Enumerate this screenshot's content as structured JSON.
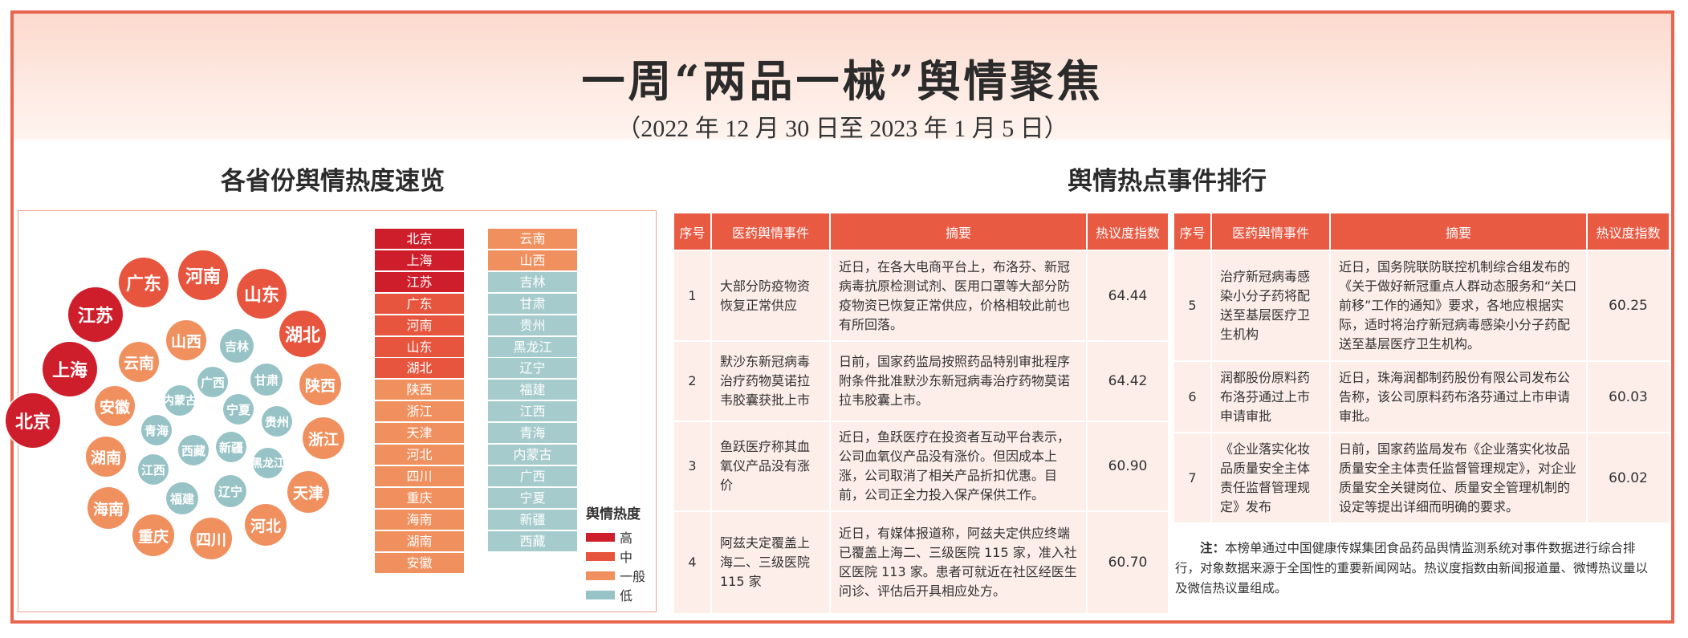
{
  "header": {
    "title": "一周“两品一械”舆情聚焦",
    "subtitle": "（2022 年 12 月 30 日至 2023 年 1 月 5 日）"
  },
  "left_section": {
    "title": "各省份舆情热度速览",
    "bubbles": [
      {
        "name": "北京",
        "level": "high"
      },
      {
        "name": "上海",
        "level": "high"
      },
      {
        "name": "江苏",
        "level": "high"
      },
      {
        "name": "广东",
        "level": "mid"
      },
      {
        "name": "河南",
        "level": "mid"
      },
      {
        "name": "山东",
        "level": "mid"
      },
      {
        "name": "湖北",
        "level": "mid"
      },
      {
        "name": "陕西",
        "level": "norm"
      },
      {
        "name": "浙江",
        "level": "norm"
      },
      {
        "name": "天津",
        "level": "norm"
      },
      {
        "name": "河北",
        "level": "norm"
      },
      {
        "name": "四川",
        "level": "norm"
      },
      {
        "name": "重庆",
        "level": "norm"
      },
      {
        "name": "海南",
        "level": "norm"
      },
      {
        "name": "湖南",
        "level": "norm"
      },
      {
        "name": "安徽",
        "level": "norm"
      },
      {
        "name": "云南",
        "level": "norm"
      },
      {
        "name": "山西",
        "level": "norm"
      },
      {
        "name": "吉林",
        "level": "low"
      },
      {
        "name": "甘肃",
        "level": "low"
      },
      {
        "name": "贵州",
        "level": "low"
      },
      {
        "name": "黑龙江",
        "level": "low"
      },
      {
        "name": "辽宁",
        "level": "low"
      },
      {
        "name": "福建",
        "level": "low"
      },
      {
        "name": "江西",
        "level": "low"
      },
      {
        "name": "青海",
        "level": "low"
      },
      {
        "name": "内蒙古",
        "level": "low"
      },
      {
        "name": "广西",
        "level": "low"
      },
      {
        "name": "宁夏",
        "level": "low"
      },
      {
        "name": "新疆",
        "level": "low"
      },
      {
        "name": "西藏",
        "level": "low"
      }
    ],
    "ranking_col1": [
      {
        "name": "北京",
        "level": "high"
      },
      {
        "name": "上海",
        "level": "high"
      },
      {
        "name": "江苏",
        "level": "high"
      },
      {
        "name": "广东",
        "level": "mid"
      },
      {
        "name": "河南",
        "level": "mid"
      },
      {
        "name": "山东",
        "level": "mid"
      },
      {
        "name": "湖北",
        "level": "mid"
      },
      {
        "name": "陕西",
        "level": "norm"
      },
      {
        "name": "浙江",
        "level": "norm"
      },
      {
        "name": "天津",
        "level": "norm"
      },
      {
        "name": "河北",
        "level": "norm"
      },
      {
        "name": "四川",
        "level": "norm"
      },
      {
        "name": "重庆",
        "level": "norm"
      },
      {
        "name": "海南",
        "level": "norm"
      },
      {
        "name": "湖南",
        "level": "norm"
      },
      {
        "name": "安徽",
        "level": "norm"
      }
    ],
    "ranking_col2": [
      {
        "name": "云南",
        "level": "norm"
      },
      {
        "name": "山西",
        "level": "norm"
      },
      {
        "name": "吉林",
        "level": "low"
      },
      {
        "name": "甘肃",
        "level": "low"
      },
      {
        "name": "贵州",
        "level": "low"
      },
      {
        "name": "黑龙江",
        "level": "low"
      },
      {
        "name": "辽宁",
        "level": "low"
      },
      {
        "name": "福建",
        "level": "low"
      },
      {
        "name": "江西",
        "level": "low"
      },
      {
        "name": "青海",
        "level": "low"
      },
      {
        "name": "内蒙古",
        "level": "low"
      },
      {
        "name": "广西",
        "level": "low"
      },
      {
        "name": "宁夏",
        "level": "low"
      },
      {
        "name": "新疆",
        "level": "low"
      },
      {
        "name": "西藏",
        "level": "low"
      }
    ],
    "legend": {
      "title": "舆情热度",
      "items": [
        {
          "label": "高",
          "color": "#cf1e2b"
        },
        {
          "label": "中",
          "color": "#e8553e"
        },
        {
          "label": "一般",
          "color": "#f0905e"
        },
        {
          "label": "低",
          "color": "#97c3c6"
        }
      ]
    }
  },
  "right_section": {
    "title": "舆情热点事件排行",
    "columns": {
      "idx": "序号",
      "event": "医药舆情事件",
      "summary": "摘要",
      "score": "热议度指数"
    },
    "events_left": [
      {
        "idx": "1",
        "event": "大部分防疫物资恢复正常供应",
        "summary": "近日，在各大电商平台上，布洛芬、新冠病毒抗原检测试剂、医用口罩等大部分防疫物资已恢复正常供应，价格相较此前也有所回落。",
        "score": "64.44"
      },
      {
        "idx": "2",
        "event": "默沙东新冠病毒治疗药物莫诺拉韦胶囊获批上市",
        "summary": "日前，国家药监局按照药品特别审批程序附条件批准默沙东新冠病毒治疗药物莫诺拉韦胶囊上市。",
        "score": "64.42"
      },
      {
        "idx": "3",
        "event": "鱼跃医疗称其血氧仪产品没有涨价",
        "summary": "近日，鱼跃医疗在投资者互动平台表示，公司血氧仪产品没有涨价。但因成本上涨，公司取消了相关产品折扣优惠。目前，公司正全力投入保产保供工作。",
        "score": "60.90"
      },
      {
        "idx": "4",
        "event": "阿兹夫定覆盖上海二、三级医院115 家",
        "summary": "近日，有媒体报道称，阿兹夫定供应终端已覆盖上海二、三级医院 115 家，准入社区医院 113 家。患者可就近在社区经医生问诊、评估后开具相应处方。",
        "score": "60.70"
      }
    ],
    "events_right": [
      {
        "idx": "5",
        "event": "治疗新冠病毒感染小分子药将配送至基层医疗卫生机构",
        "summary": "近日，国务院联防联控机制综合组发布的《关于做好新冠重点人群动态服务和“关口前移”工作的通知》要求，各地应根据实际，适时将治疗新冠病毒感染小分子药配送至基层医疗卫生机构。",
        "score": "60.25"
      },
      {
        "idx": "6",
        "event": "润都股份原料药布洛芬通过上市申请审批",
        "summary": "近日，珠海润都制药股份有限公司发布公告称，该公司原料药布洛芬通过上市申请审批。",
        "score": "60.03"
      },
      {
        "idx": "7",
        "event": "《企业落实化妆品质量安全主体责任监督管理规定》发布",
        "summary": "日前，国家药监局发布《企业落实化妆品质量安全主体责任监督管理规定》，对企业质量安全关键岗位、质量安全管理机制的设定等提出详细而明确的要求。",
        "score": "60.02"
      }
    ],
    "note_label": "注：",
    "note_text": "本榜单通过中国健康传媒集团食品药品舆情监测系统对事件数据进行综合排行，对象数据来源于全国性的重要新闻网站。热议度指数由新闻报道量、微博热议量以及微信热议量组成。"
  }
}
